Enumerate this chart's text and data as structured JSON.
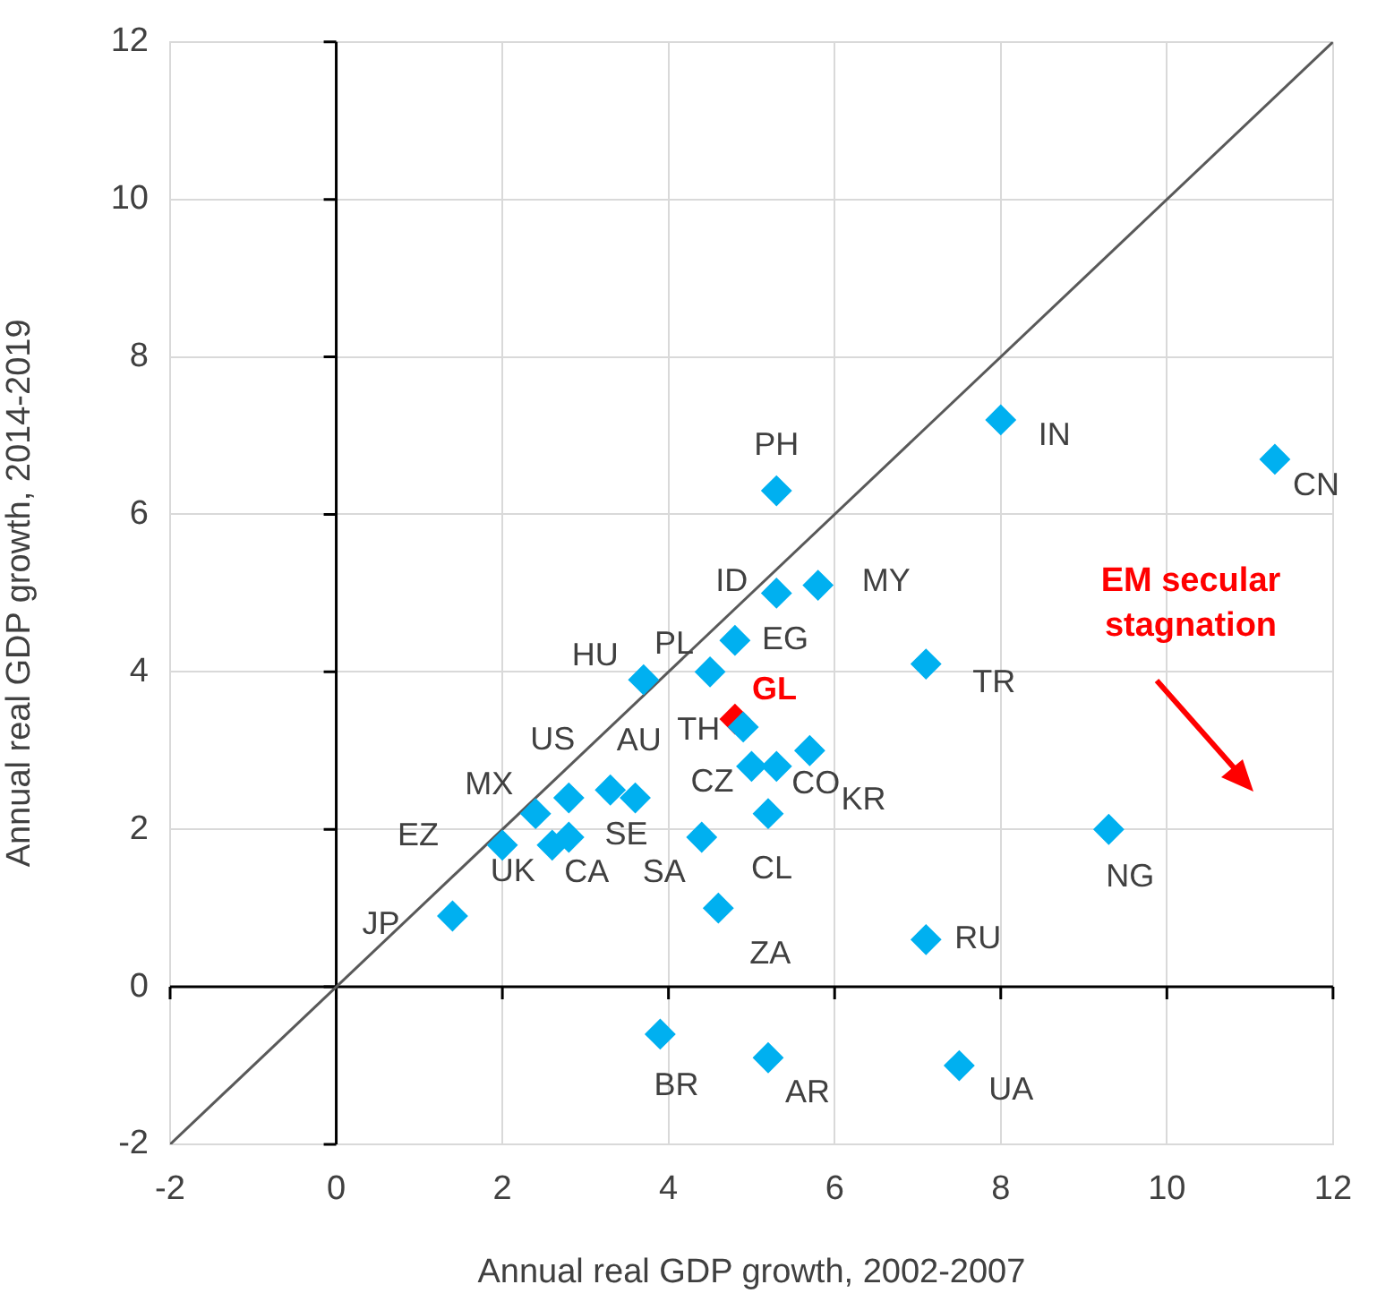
{
  "chart_data": {
    "type": "scatter",
    "xlabel": "Annual real GDP growth, 2002-2007",
    "ylabel": "Annual real GDP growth, 2014-2019",
    "xlim": [
      -2,
      12
    ],
    "ylim": [
      -2,
      12
    ],
    "xticks": [
      -2,
      0,
      2,
      4,
      6,
      8,
      10,
      12
    ],
    "yticks": [
      -2,
      0,
      2,
      4,
      6,
      8,
      10,
      12
    ],
    "grid": true,
    "legend": false,
    "marker": "diamond",
    "annotations": [
      "EM secular stagnation"
    ],
    "series": [
      {
        "type": "line",
        "color": "#595959",
        "marker": "none",
        "x": [
          -2,
          12
        ],
        "values": [
          -2,
          12
        ]
      },
      {
        "name": "PH",
        "color": "#00b0f0",
        "x": [
          5.3
        ],
        "values": [
          6.3
        ]
      },
      {
        "name": "IN",
        "color": "#00b0f0",
        "x": [
          8.0
        ],
        "values": [
          7.2
        ]
      },
      {
        "name": "CN",
        "color": "#00b0f0",
        "x": [
          11.3
        ],
        "values": [
          6.7
        ]
      },
      {
        "name": "ID",
        "color": "#00b0f0",
        "x": [
          5.3
        ],
        "values": [
          5.0
        ]
      },
      {
        "name": "MY",
        "color": "#00b0f0",
        "x": [
          5.8
        ],
        "values": [
          5.1
        ]
      },
      {
        "name": "EG",
        "color": "#00b0f0",
        "x": [
          4.8
        ],
        "values": [
          4.4
        ]
      },
      {
        "name": "PL",
        "color": "#00b0f0",
        "x": [
          4.5
        ],
        "values": [
          4.0
        ]
      },
      {
        "name": "HU",
        "color": "#00b0f0",
        "x": [
          3.7
        ],
        "values": [
          3.9
        ]
      },
      {
        "name": "TR",
        "color": "#00b0f0",
        "x": [
          7.1
        ],
        "values": [
          4.1
        ]
      },
      {
        "name": "TH",
        "color": "#00b0f0",
        "x": [
          4.9
        ],
        "values": [
          3.3
        ]
      },
      {
        "name": "GL",
        "color": "#ff0000",
        "x": [
          4.8
        ],
        "values": [
          3.4
        ]
      },
      {
        "name": "KR",
        "color": "#00b0f0",
        "x": [
          5.7
        ],
        "values": [
          3.0
        ]
      },
      {
        "name": "CZ",
        "color": "#00b0f0",
        "x": [
          5.0
        ],
        "values": [
          2.8
        ]
      },
      {
        "name": "CO",
        "color": "#00b0f0",
        "x": [
          5.3
        ],
        "values": [
          2.8
        ]
      },
      {
        "name": "CL",
        "color": "#00b0f0",
        "x": [
          5.2
        ],
        "values": [
          2.2
        ]
      },
      {
        "name": "MX",
        "color": "#00b0f0",
        "x": [
          2.4
        ],
        "values": [
          2.2
        ]
      },
      {
        "name": "US",
        "color": "#00b0f0",
        "x": [
          2.8
        ],
        "values": [
          2.4
        ]
      },
      {
        "name": "AU",
        "color": "#00b0f0",
        "x": [
          3.3
        ],
        "values": [
          2.5
        ]
      },
      {
        "name": "SE",
        "color": "#00b0f0",
        "x": [
          3.6
        ],
        "values": [
          2.4
        ]
      },
      {
        "name": "EZ",
        "color": "#00b0f0",
        "x": [
          2.0
        ],
        "values": [
          1.8
        ]
      },
      {
        "name": "UK",
        "color": "#00b0f0",
        "x": [
          2.6
        ],
        "values": [
          1.8
        ]
      },
      {
        "name": "CA",
        "color": "#00b0f0",
        "x": [
          2.8
        ],
        "values": [
          1.9
        ]
      },
      {
        "name": "SA",
        "color": "#00b0f0",
        "x": [
          4.4
        ],
        "values": [
          1.9
        ]
      },
      {
        "name": "JP",
        "color": "#00b0f0",
        "x": [
          1.4
        ],
        "values": [
          0.9
        ]
      },
      {
        "name": "ZA",
        "color": "#00b0f0",
        "x": [
          4.6
        ],
        "values": [
          1.0
        ]
      },
      {
        "name": "BR",
        "color": "#00b0f0",
        "x": [
          3.9
        ],
        "values": [
          -0.6
        ]
      },
      {
        "name": "AR",
        "color": "#00b0f0",
        "x": [
          5.2
        ],
        "values": [
          -0.9
        ]
      },
      {
        "name": "UA",
        "color": "#00b0f0",
        "x": [
          7.5
        ],
        "values": [
          -1.0
        ]
      },
      {
        "name": "RU",
        "color": "#00b0f0",
        "x": [
          7.1
        ],
        "values": [
          0.6
        ]
      },
      {
        "name": "NG",
        "color": "#00b0f0",
        "x": [
          9.3
        ],
        "values": [
          2.0
        ]
      }
    ]
  }
}
